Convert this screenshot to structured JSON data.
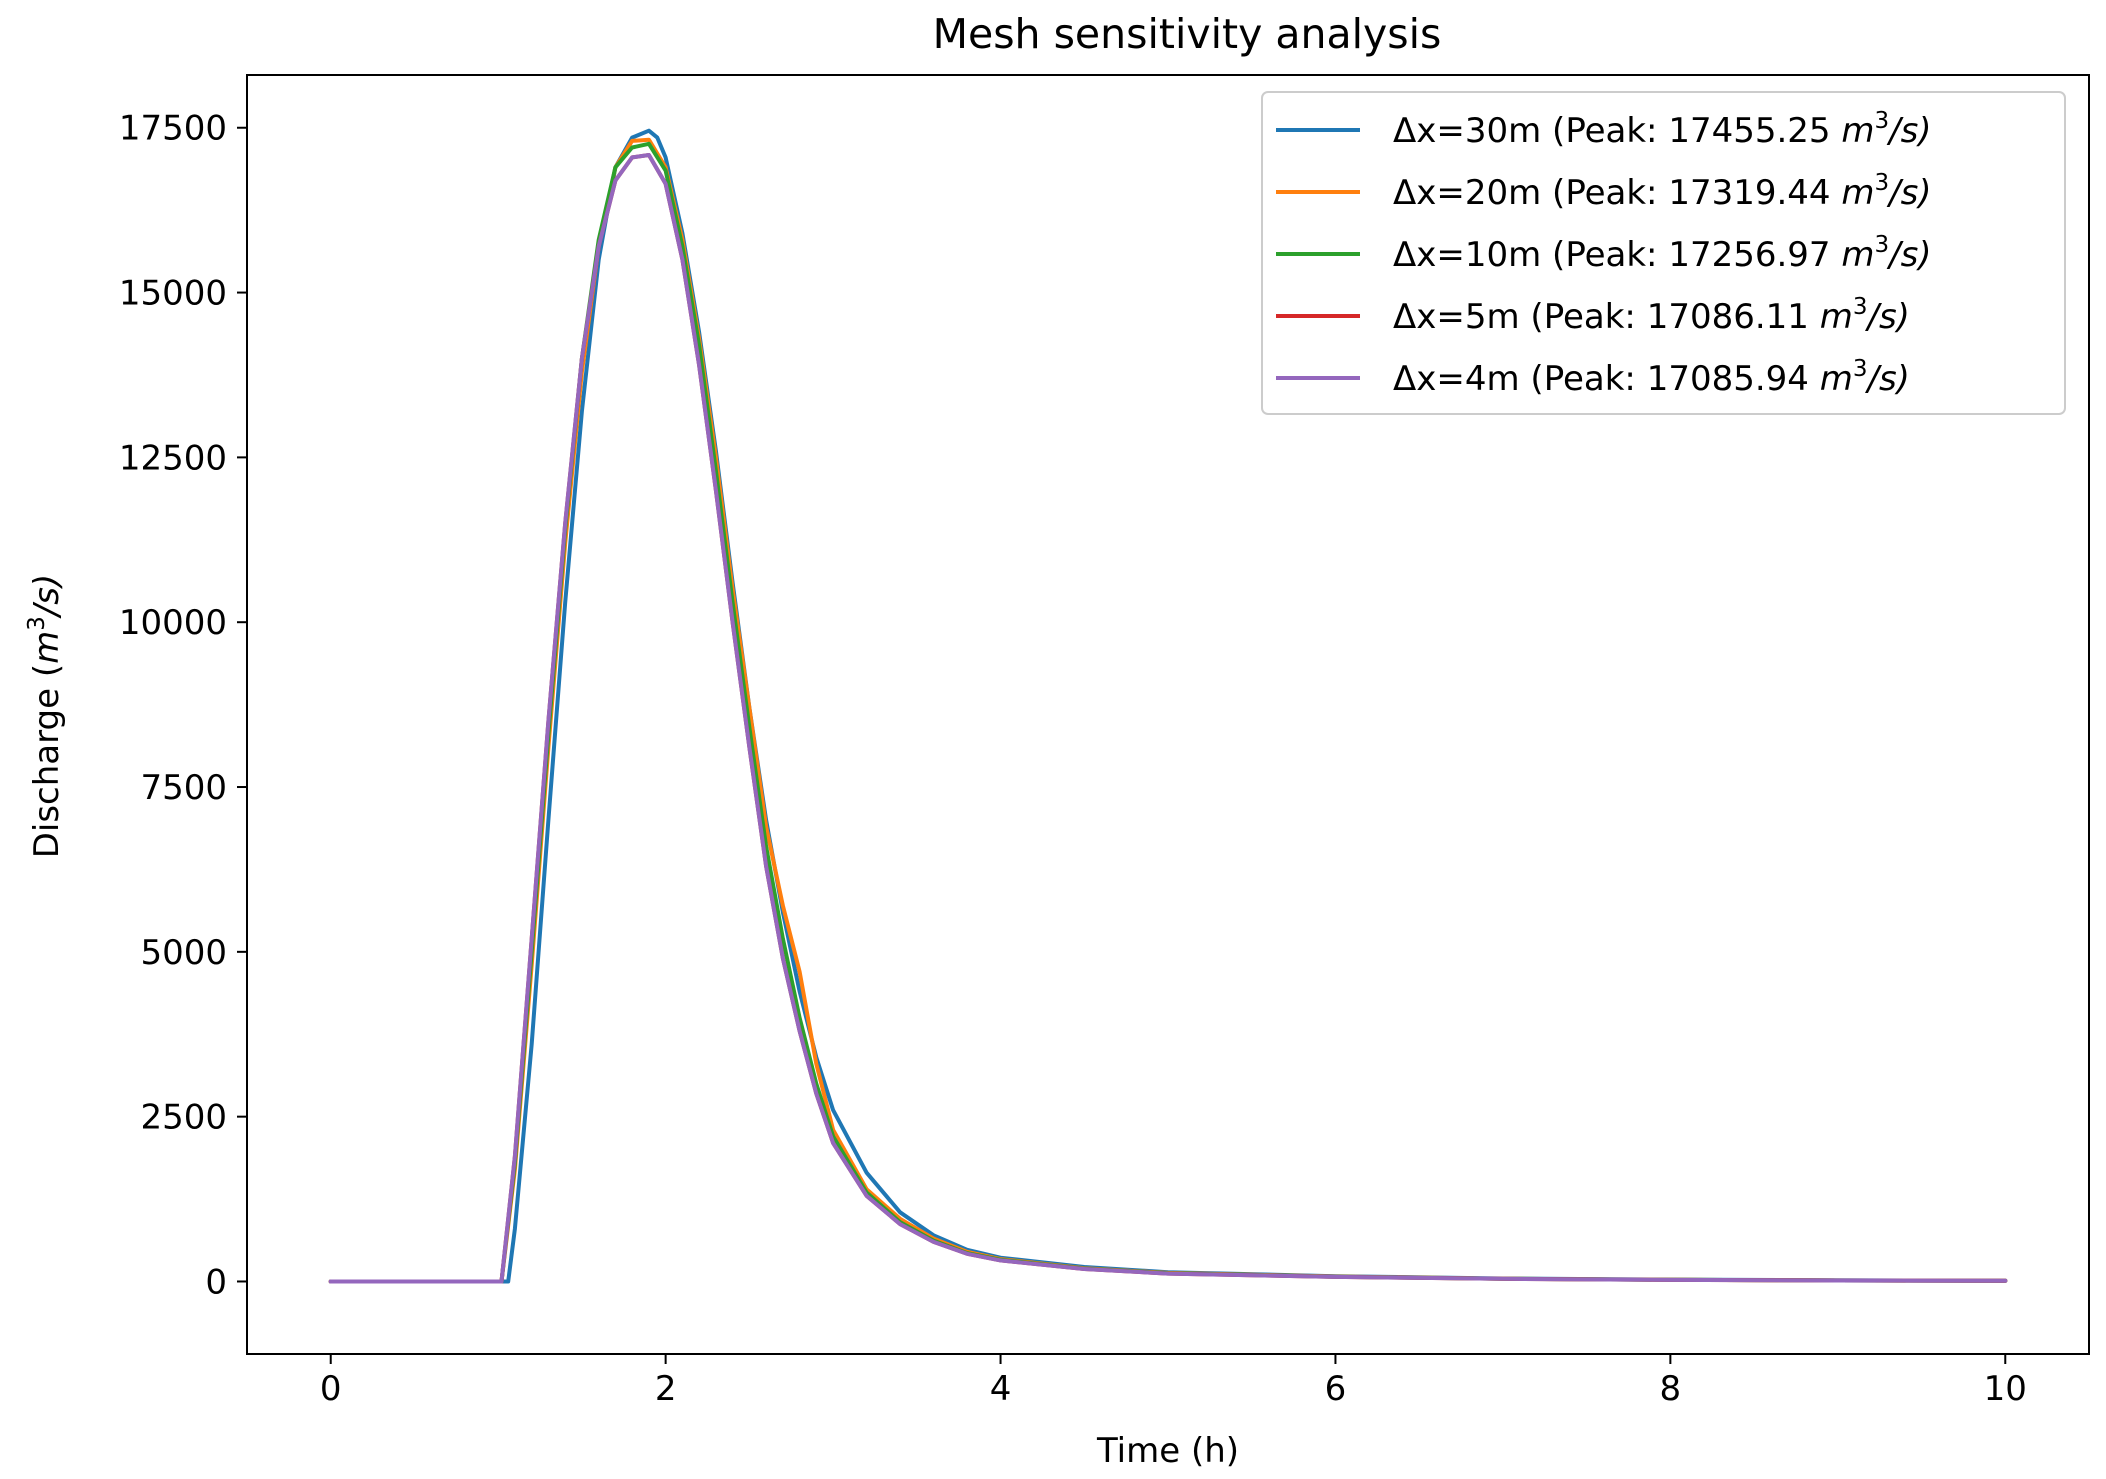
{
  "chart_data": {
    "type": "line",
    "title": "Mesh sensitivity analysis",
    "xlabel": "Time (h)",
    "ylabel_prefix": "Discharge (",
    "ylabel_unit": "m",
    "ylabel_exp": "3",
    "ylabel_suffix": "/s)",
    "xlim": [
      -0.5,
      10.5
    ],
    "ylim": [
      -1100,
      18300
    ],
    "xticks": [
      0,
      2,
      4,
      6,
      8,
      10
    ],
    "xtick_labels": [
      "0",
      "2",
      "4",
      "6",
      "8",
      "10"
    ],
    "yticks": [
      0,
      2500,
      5000,
      7500,
      10000,
      12500,
      15000,
      17500
    ],
    "ytick_labels": [
      "0",
      "2500",
      "5000",
      "7500",
      "10000",
      "12500",
      "15000",
      "17500"
    ],
    "legend_position": "top-right",
    "series": [
      {
        "name": "Δx=30m",
        "legend_prefix": "Δx=30m (Peak: 17455.25 ",
        "legend_unit": "m",
        "legend_exp": "3",
        "legend_suffix": "/s)",
        "color": "#1f77b4",
        "peak": 17455.25,
        "x": [
          0,
          1.0,
          1.04,
          1.06,
          1.1,
          1.2,
          1.3,
          1.4,
          1.5,
          1.6,
          1.7,
          1.8,
          1.9,
          1.95,
          2.0,
          2.1,
          2.2,
          2.3,
          2.4,
          2.5,
          2.6,
          2.7,
          2.8,
          2.9,
          3.0,
          3.2,
          3.4,
          3.6,
          3.8,
          4.0,
          4.5,
          5.0,
          6.0,
          7.0,
          8.0,
          9.0,
          10.0
        ],
        "y": [
          0,
          0,
          0,
          0,
          800,
          3600,
          7000,
          10300,
          13200,
          15500,
          16900,
          17350,
          17455,
          17350,
          17050,
          15900,
          14400,
          12600,
          10600,
          8700,
          7000,
          5600,
          4400,
          3400,
          2600,
          1650,
          1050,
          700,
          480,
          360,
          220,
          140,
          80,
          45,
          28,
          18,
          12
        ]
      },
      {
        "name": "Δx=20m",
        "legend_prefix": "Δx=20m (Peak: 17319.44 ",
        "legend_unit": "m",
        "legend_exp": "3",
        "legend_suffix": "/s)",
        "color": "#ff7f0e",
        "peak": 17319.44,
        "x": [
          0,
          1.0,
          1.02,
          1.1,
          1.2,
          1.3,
          1.4,
          1.5,
          1.6,
          1.7,
          1.8,
          1.9,
          2.0,
          2.1,
          2.2,
          2.3,
          2.4,
          2.5,
          2.6,
          2.7,
          2.8,
          2.9,
          3.0,
          3.2,
          3.4,
          3.6,
          3.8,
          4.0,
          4.5,
          5.0,
          6.0,
          7.0,
          8.0,
          9.0,
          10.0
        ],
        "y": [
          0,
          0,
          0,
          1700,
          4800,
          8100,
          11200,
          13800,
          15700,
          16900,
          17300,
          17319,
          16900,
          15800,
          14300,
          12500,
          10500,
          8700,
          6900,
          5700,
          4700,
          3300,
          2300,
          1400,
          950,
          650,
          450,
          340,
          200,
          130,
          75,
          42,
          26,
          16,
          10
        ]
      },
      {
        "name": "Δx=10m",
        "legend_prefix": "Δx=10m (Peak: 17256.97 ",
        "legend_unit": "m",
        "legend_exp": "3",
        "legend_suffix": "/s)",
        "color": "#2ca02c",
        "peak": 17256.97,
        "x": [
          0,
          1.0,
          1.02,
          1.1,
          1.2,
          1.3,
          1.4,
          1.5,
          1.6,
          1.7,
          1.8,
          1.9,
          2.0,
          2.1,
          2.2,
          2.3,
          2.4,
          2.5,
          2.6,
          2.7,
          2.8,
          2.9,
          3.0,
          3.2,
          3.4,
          3.6,
          3.8,
          4.0,
          4.5,
          5.0,
          6.0,
          7.0,
          8.0,
          9.0,
          10.0
        ],
        "y": [
          0,
          0,
          0,
          1800,
          5000,
          8300,
          11400,
          14000,
          15800,
          16900,
          17200,
          17257,
          16850,
          15700,
          14200,
          12300,
          10300,
          8400,
          6600,
          5200,
          4000,
          3000,
          2200,
          1350,
          900,
          620,
          430,
          330,
          195,
          125,
          72,
          40,
          25,
          15,
          10
        ]
      },
      {
        "name": "Δx=5m",
        "legend_prefix": "Δx=5m (Peak: 17086.11 ",
        "legend_unit": "m",
        "legend_exp": "3",
        "legend_suffix": "/s)",
        "color": "#d62728",
        "peak": 17086.11,
        "x": [
          0,
          1.0,
          1.02,
          1.1,
          1.2,
          1.3,
          1.4,
          1.5,
          1.6,
          1.7,
          1.8,
          1.9,
          2.0,
          2.1,
          2.2,
          2.3,
          2.4,
          2.5,
          2.6,
          2.7,
          2.8,
          2.9,
          3.0,
          3.2,
          3.4,
          3.6,
          3.8,
          4.0,
          4.5,
          5.0,
          6.0,
          7.0,
          8.0,
          9.0,
          10.0
        ],
        "y": [
          0,
          0,
          0,
          1900,
          5200,
          8500,
          11500,
          14000,
          15700,
          16700,
          17050,
          17086,
          16650,
          15500,
          13900,
          12000,
          10000,
          8100,
          6300,
          4900,
          3800,
          2850,
          2100,
          1300,
          870,
          600,
          420,
          320,
          190,
          120,
          70,
          40,
          24,
          15,
          10
        ]
      },
      {
        "name": "Δx=4m",
        "legend_prefix": "Δx=4m (Peak: 17085.94 ",
        "legend_unit": "m",
        "legend_exp": "3",
        "legend_suffix": "/s)",
        "color": "#9467bd",
        "peak": 17085.94,
        "x": [
          0,
          1.0,
          1.02,
          1.1,
          1.2,
          1.3,
          1.4,
          1.5,
          1.6,
          1.7,
          1.8,
          1.9,
          2.0,
          2.1,
          2.2,
          2.3,
          2.4,
          2.5,
          2.6,
          2.7,
          2.8,
          2.9,
          3.0,
          3.2,
          3.4,
          3.6,
          3.8,
          4.0,
          4.5,
          5.0,
          6.0,
          7.0,
          8.0,
          9.0,
          10.0
        ],
        "y": [
          0,
          0,
          0,
          1900,
          5200,
          8500,
          11500,
          14000,
          15700,
          16700,
          17050,
          17086,
          16650,
          15500,
          13900,
          12000,
          10000,
          8100,
          6300,
          4900,
          3800,
          2850,
          2100,
          1300,
          870,
          600,
          420,
          320,
          190,
          120,
          70,
          40,
          24,
          15,
          10
        ]
      }
    ]
  }
}
